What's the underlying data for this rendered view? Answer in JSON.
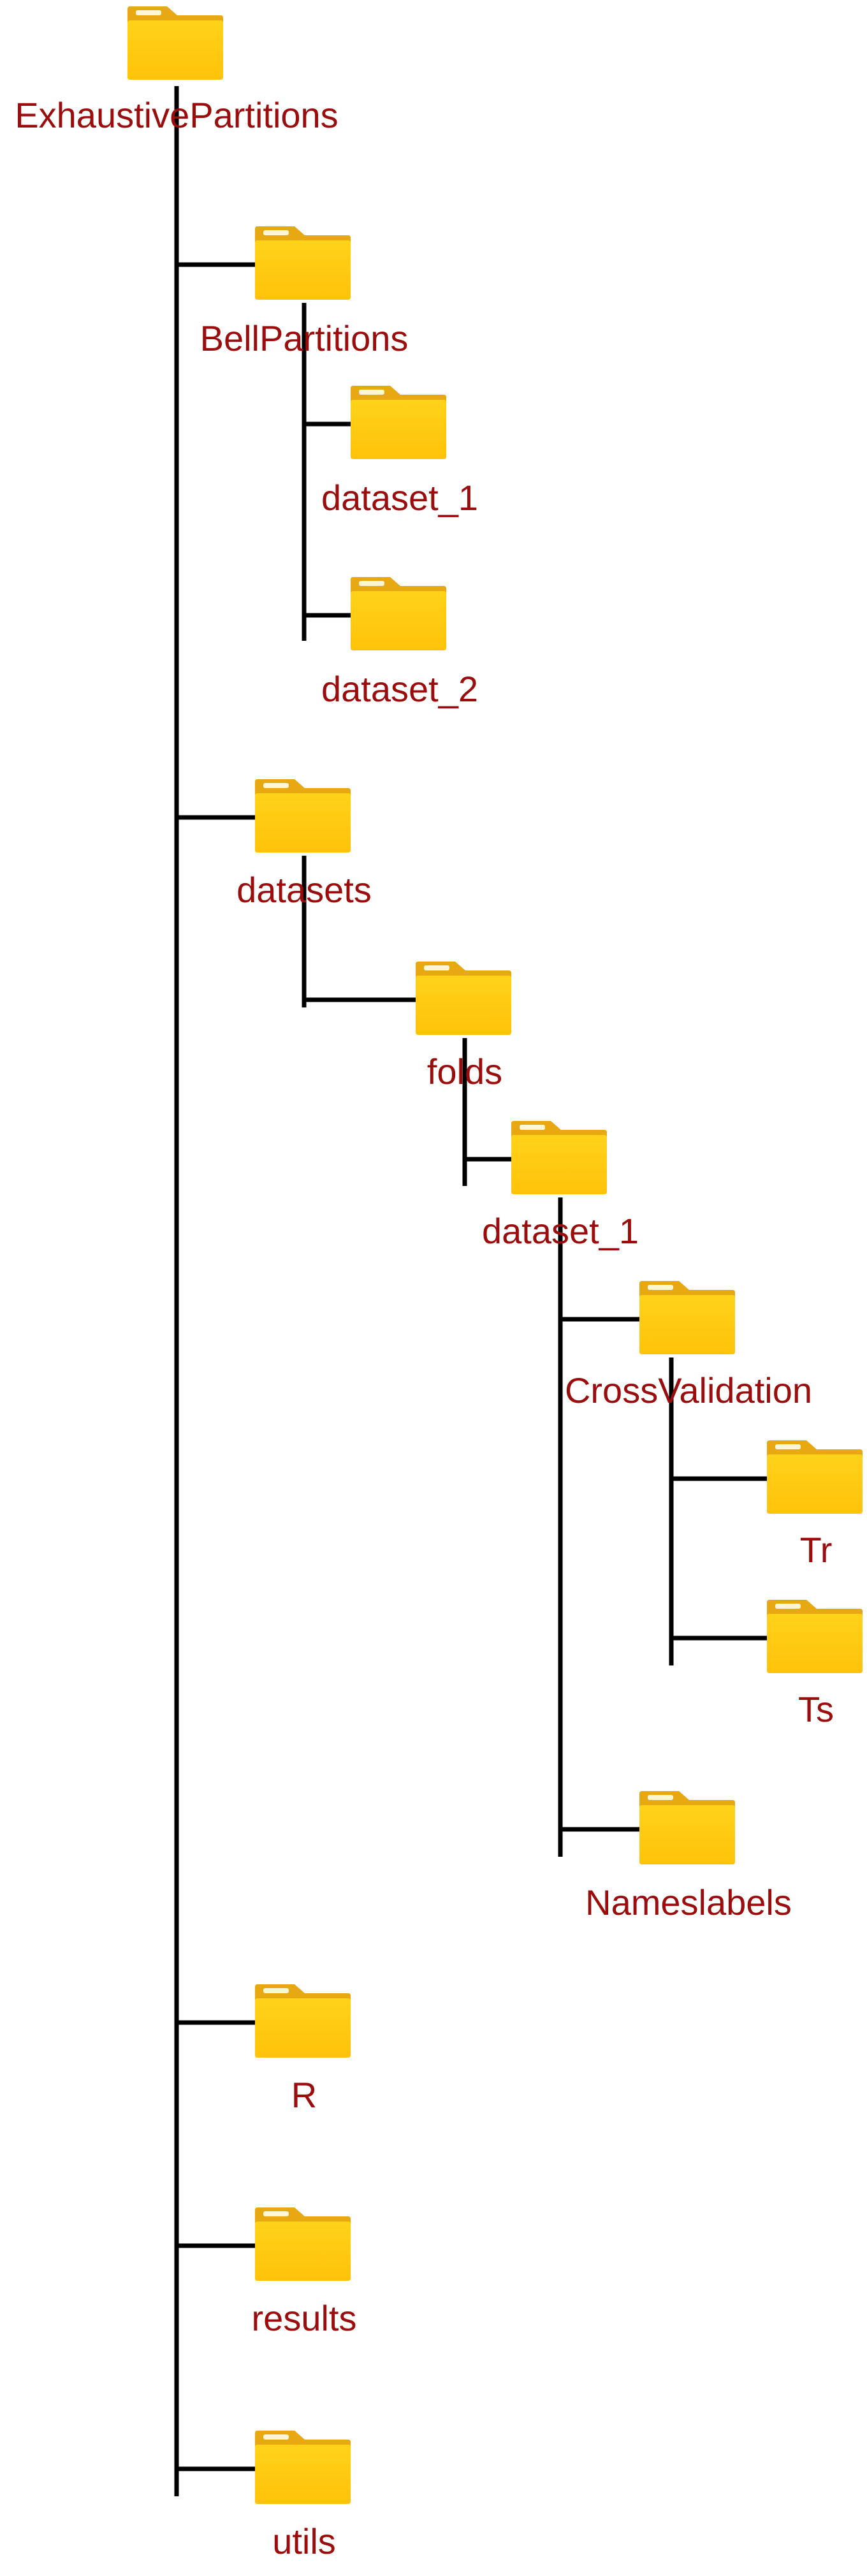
{
  "colors": {
    "label": "#9b0d0d",
    "line": "#000000",
    "folder_top": "#ffd21a",
    "folder_bottom": "#ffc20a",
    "folder_tab": "#e8a812",
    "folder_tab_slot": "#fff6d6"
  },
  "tree": {
    "root": {
      "label": "ExhaustivePartitions",
      "icon": "folder-icon"
    },
    "nodes": [
      {
        "id": "bellpartitions",
        "label": "BellPartitions",
        "parent": "root",
        "icon": "folder-icon"
      },
      {
        "id": "bell-dataset-1",
        "label": "dataset_1",
        "parent": "bellpartitions",
        "icon": "folder-icon"
      },
      {
        "id": "bell-dataset-2",
        "label": "dataset_2",
        "parent": "bellpartitions",
        "icon": "folder-icon"
      },
      {
        "id": "datasets",
        "label": "datasets",
        "parent": "root",
        "icon": "folder-icon"
      },
      {
        "id": "folds",
        "label": "folds",
        "parent": "datasets",
        "icon": "folder-icon"
      },
      {
        "id": "folds-dataset-1",
        "label": "dataset_1",
        "parent": "folds",
        "icon": "folder-icon"
      },
      {
        "id": "crossvalidation",
        "label": "CrossValidation",
        "parent": "folds-dataset-1",
        "icon": "folder-icon"
      },
      {
        "id": "tr",
        "label": "Tr",
        "parent": "crossvalidation",
        "icon": "folder-icon"
      },
      {
        "id": "ts",
        "label": "Ts",
        "parent": "crossvalidation",
        "icon": "folder-icon"
      },
      {
        "id": "nameslabels",
        "label": "Nameslabels",
        "parent": "folds-dataset-1",
        "icon": "folder-icon"
      },
      {
        "id": "r",
        "label": "R",
        "parent": "root",
        "icon": "folder-icon"
      },
      {
        "id": "results",
        "label": "results",
        "parent": "root",
        "icon": "folder-icon"
      },
      {
        "id": "utils",
        "label": "utils",
        "parent": "root",
        "icon": "folder-icon"
      }
    ]
  }
}
